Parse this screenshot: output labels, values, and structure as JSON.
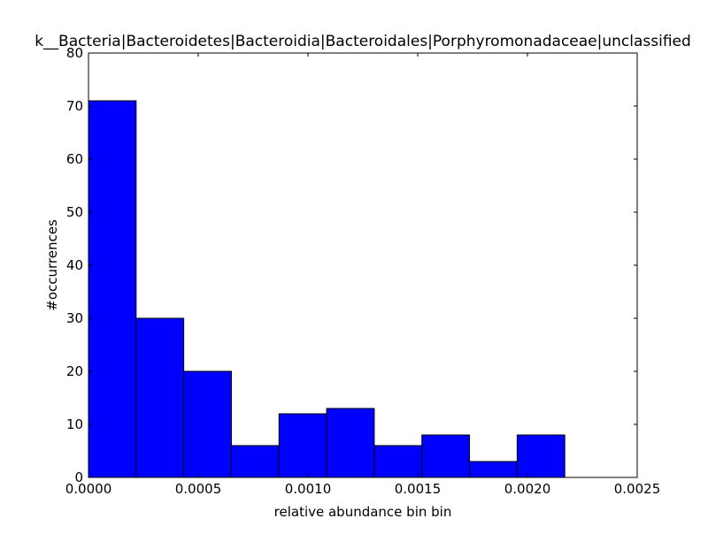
{
  "chart_data": {
    "type": "bar",
    "title": "k__Bacteria|Bacteroidetes|Bacteroidia|Bacteroidales|Porphyromonadaceae|unclassified",
    "xlabel": "relative abundance bin bin",
    "ylabel": "#occurrences",
    "xlim": [
      0,
      0.0025
    ],
    "ylim": [
      0,
      80
    ],
    "bin_edges": [
      0.0,
      0.000217,
      0.000434,
      0.000651,
      0.000868,
      0.001085,
      0.001302,
      0.001519,
      0.001736,
      0.001953,
      0.00217
    ],
    "values": [
      71,
      30,
      20,
      6,
      12,
      13,
      6,
      8,
      3,
      8
    ],
    "bar_color": "#0000ff",
    "x_ticks": [
      "0.0000",
      "0.0005",
      "0.0010",
      "0.0015",
      "0.0020",
      "0.0025"
    ],
    "x_tick_values": [
      0,
      0.0005,
      0.001,
      0.0015,
      0.002,
      0.0025
    ],
    "y_ticks": [
      "0",
      "10",
      "20",
      "30",
      "40",
      "50",
      "60",
      "70",
      "80"
    ],
    "y_tick_values": [
      0,
      10,
      20,
      30,
      40,
      50,
      60,
      70,
      80
    ],
    "grid": false,
    "legend": "none"
  }
}
